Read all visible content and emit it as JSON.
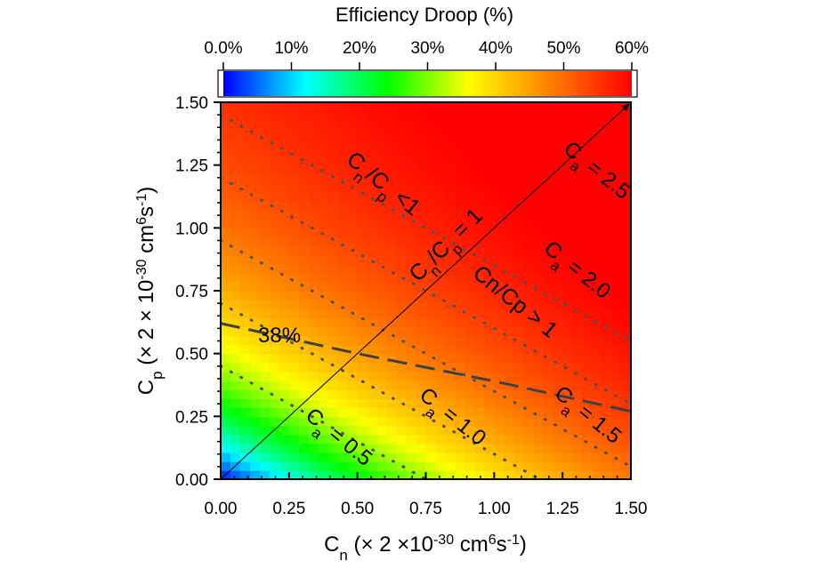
{
  "chart_data": {
    "type": "heatmap",
    "title": "Efficiency Droop (%)",
    "colorbar": {
      "ticks": [
        "0.0%",
        "10%",
        "20%",
        "30%",
        "40%",
        "50%",
        "60%"
      ],
      "values": [
        0,
        10,
        20,
        30,
        40,
        50,
        60
      ],
      "range": [
        0,
        60
      ],
      "colormap": [
        "#0000ff",
        "#00ffff",
        "#00ff00",
        "#ffff00",
        "#ff8000",
        "#ff0000"
      ]
    },
    "xlabel": {
      "main": "C",
      "sub": "n",
      "pre": " (× 2 ×10",
      "sup1": "-30",
      "mid": " cm",
      "sup2": "6",
      "post1": "s",
      "sup3": "-1",
      "post2": ")"
    },
    "ylabel": {
      "main": "C",
      "sub": "p",
      "pre": " (× 2 × 10",
      "sup1": "-30",
      "mid": " cm",
      "sup2": "6",
      "post1": "s",
      "sup3": "-1",
      "post2": ")"
    },
    "xlim": [
      0,
      1.5
    ],
    "ylim": [
      0,
      1.5
    ],
    "xticks": [
      "0.00",
      "0.25",
      "0.50",
      "0.75",
      "1.00",
      "1.25",
      "1.50"
    ],
    "yticks": [
      "0.00",
      "0.25",
      "0.50",
      "0.75",
      "1.00",
      "1.25",
      "1.50"
    ],
    "iso_ca_lines": [
      {
        "ca": 0.5,
        "label_main": "C",
        "label_sub": "a",
        "label_rest": " = 0.5"
      },
      {
        "ca": 1.0,
        "label_main": "C",
        "label_sub": "a",
        "label_rest": " = 1.0"
      },
      {
        "ca": 1.5,
        "label_main": "C",
        "label_sub": "a",
        "label_rest": " = 1.5"
      },
      {
        "ca": 2.0,
        "label_main": "C",
        "label_sub": "a",
        "label_rest": " = 2.0"
      },
      {
        "ca": 2.5,
        "label_main": "C",
        "label_sub": "a",
        "label_rest": " = 2.5"
      }
    ],
    "contour_38": {
      "label": "38%",
      "points": [
        [
          0,
          0.62
        ],
        [
          0.5,
          0.5
        ],
        [
          1.0,
          0.39
        ],
        [
          1.5,
          0.27
        ]
      ]
    },
    "diagonal": {
      "from": [
        0,
        0
      ],
      "to": [
        1.5,
        1.5
      ],
      "label": "Cn/Cp = 1"
    },
    "regions": [
      {
        "label": "Cn/Cp < 1"
      },
      {
        "label": "Cn/Cp > 1"
      }
    ]
  }
}
